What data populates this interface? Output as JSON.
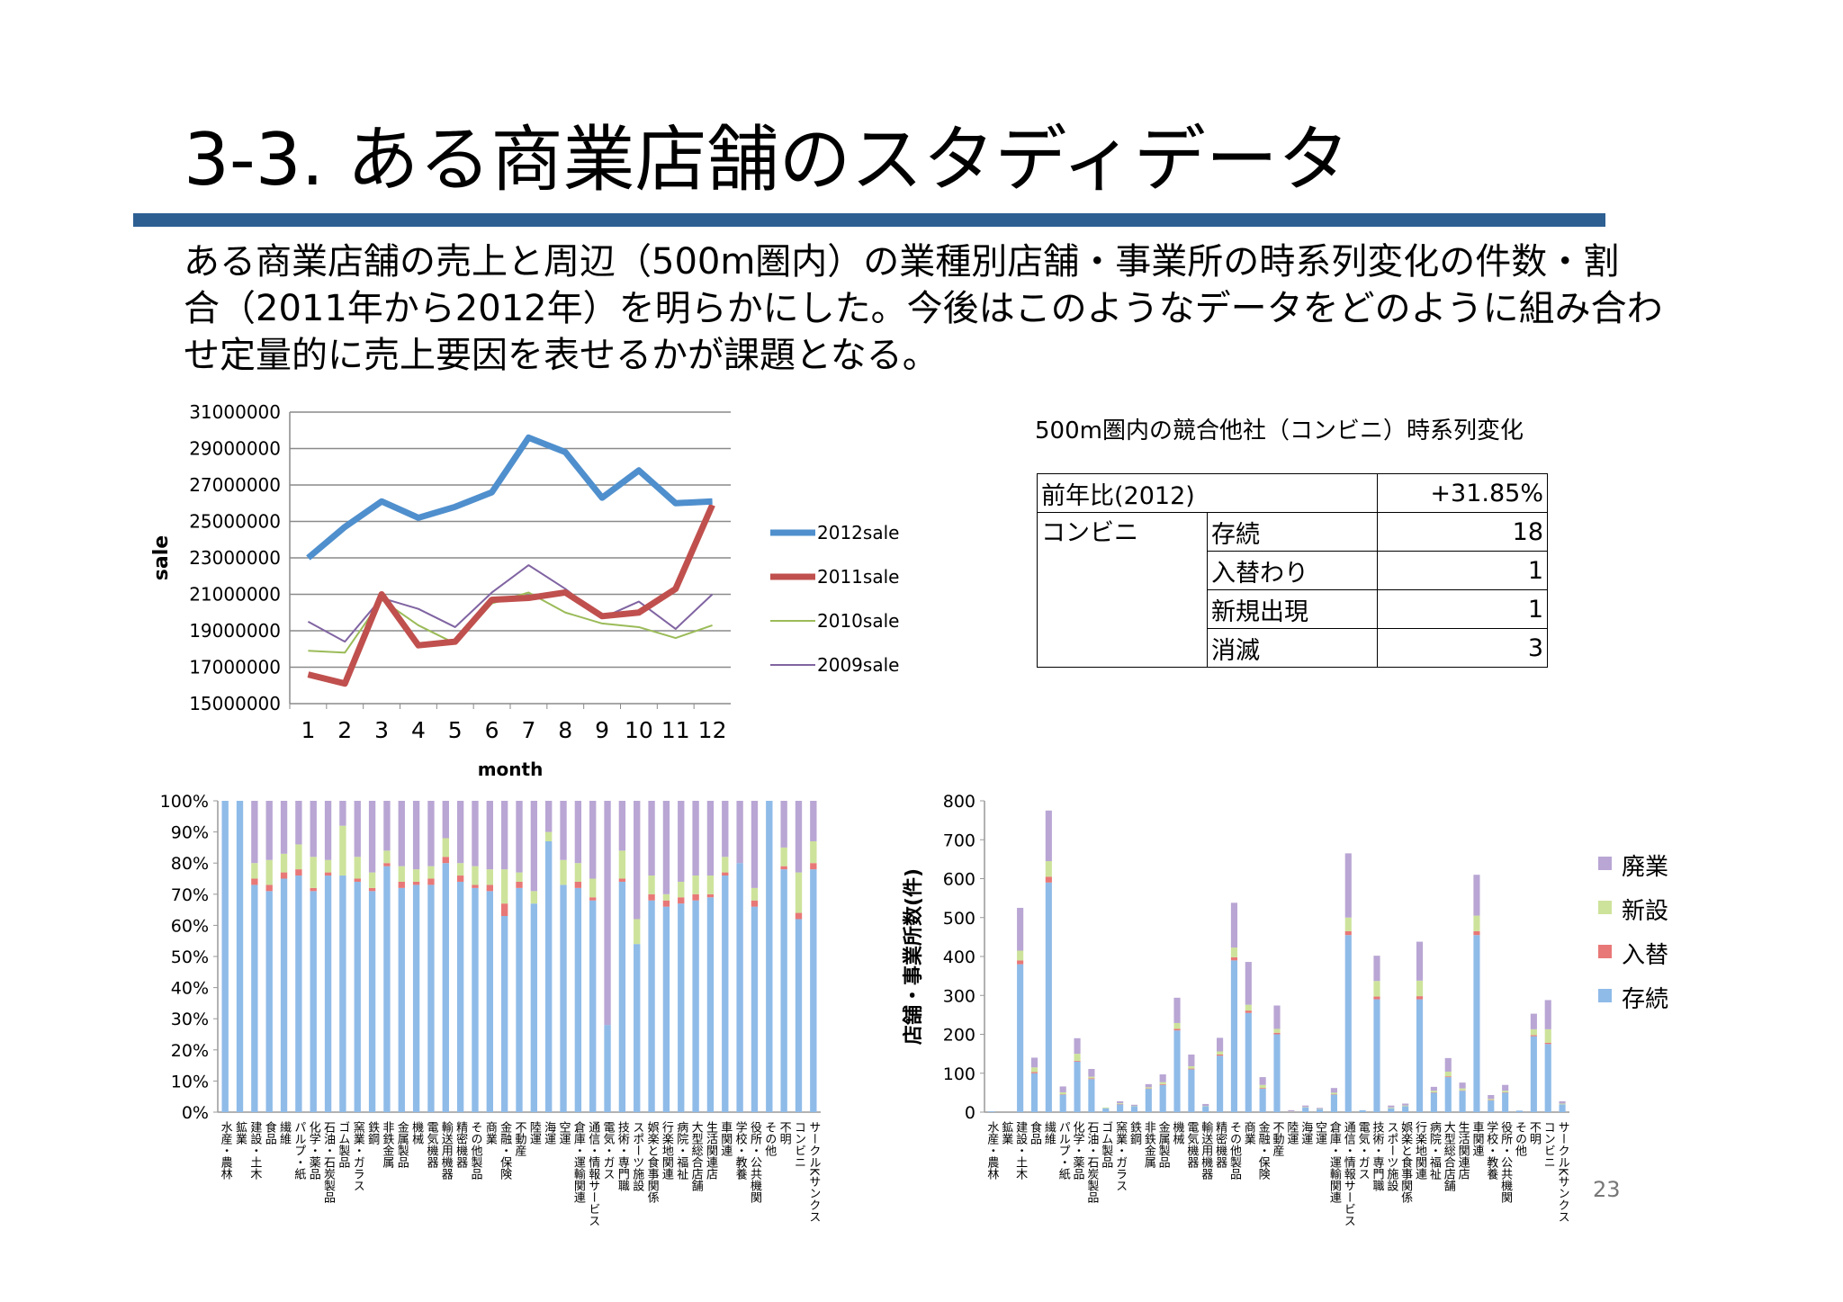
{
  "slide": {
    "title": "3-3. ある商業店舗のスタディデータ",
    "body_lines": [
      "ある商業店舗の売上と周辺（500m圏内）の業種別店舗・事業所の時系列変化の件数・割",
      "合（2011年から2012年）を明らかにした。今後はこのようなデータをどのように組み合わ",
      "せ定量的に売上要因を表せるかが課題となる。"
    ],
    "page_number": "23"
  },
  "table": {
    "caption": "500m圏内の競合他社（コンビニ）時系列変化",
    "header_label": "前年比(2012)",
    "header_value": "+31.85%",
    "group_label": "コンビニ",
    "rows": [
      {
        "label": "存続",
        "value": "18"
      },
      {
        "label": "入替わり",
        "value": "1"
      },
      {
        "label": "新規出現",
        "value": "1"
      },
      {
        "label": "消滅",
        "value": "3"
      }
    ]
  },
  "chart_data": [
    {
      "type": "line",
      "title": "",
      "xlabel": "month",
      "ylabel": "sale",
      "x": [
        1,
        2,
        3,
        4,
        5,
        6,
        7,
        8,
        9,
        10,
        11,
        12
      ],
      "ylim": [
        15000000,
        31000000
      ],
      "yticks": [
        15000000,
        17000000,
        19000000,
        21000000,
        23000000,
        25000000,
        27000000,
        29000000,
        31000000
      ],
      "grid": true,
      "legend": "right",
      "series": [
        {
          "name": "2012sale",
          "color": "#4f8fcd",
          "width": "thick",
          "values": [
            23000000,
            24700000,
            26100000,
            25200000,
            25800000,
            26600000,
            29600000,
            28800000,
            26300000,
            27800000,
            26000000,
            26100000
          ]
        },
        {
          "name": "2011sale",
          "color": "#c0504d",
          "width": "thick",
          "values": [
            16600000,
            16100000,
            21000000,
            18200000,
            18400000,
            20700000,
            20800000,
            21100000,
            19800000,
            20000000,
            21300000,
            25900000
          ]
        },
        {
          "name": "2010sale",
          "color": "#9bbb59",
          "width": "thin",
          "values": [
            17900000,
            17800000,
            20700000,
            19300000,
            18300000,
            20500000,
            21100000,
            20000000,
            19400000,
            19200000,
            18600000,
            19300000
          ]
        },
        {
          "name": "2009sale",
          "color": "#8064a2",
          "width": "thin",
          "values": [
            19500000,
            18400000,
            20800000,
            20200000,
            19200000,
            21100000,
            22600000,
            21300000,
            19700000,
            20600000,
            19100000,
            21000000
          ]
        }
      ]
    },
    {
      "type": "bar",
      "stacked": true,
      "percent": true,
      "title": "",
      "xlabel": "",
      "ylabel": "",
      "ylim": [
        0,
        100
      ],
      "yticks_label": [
        "0%",
        "10%",
        "20%",
        "30%",
        "40%",
        "50%",
        "60%",
        "70%",
        "80%",
        "90%",
        "100%"
      ],
      "categories": [
        "水産・農林",
        "鉱業",
        "建設・土木",
        "食品",
        "繊維",
        "パルプ・紙",
        "化学・薬品",
        "石油・石炭製品",
        "ゴム製品",
        "窯業・ガラス",
        "鉄鋼",
        "非鉄金属",
        "金属製品",
        "機械",
        "電気機器",
        "輸送用機器",
        "精密機器",
        "その他製品",
        "商業",
        "金融・保険",
        "不動産",
        "陸運",
        "海運",
        "空運",
        "倉庫・運輸関連",
        "通信・情報サービス",
        "電気・ガス",
        "技術・専門職",
        "スポーツ施設",
        "娯楽と食事関係",
        "行楽地関連",
        "病院・福祉",
        "大型総合店舗",
        "生活関連店",
        "車関連",
        "学校・教養",
        "役所・公共機関",
        "その他",
        "不明",
        "コンビニ",
        "サークルKサンクス"
      ],
      "series": [
        {
          "name": "存続",
          "color": "#8fbbe8",
          "values": [
            100,
            100,
            73,
            71,
            75,
            76,
            71,
            76,
            76,
            74,
            71,
            79,
            72,
            73,
            73,
            80,
            74,
            72,
            71,
            63,
            72,
            67,
            87,
            73,
            72,
            68,
            28,
            74,
            54,
            68,
            66,
            67,
            68,
            69,
            76,
            80,
            66,
            100,
            78,
            62,
            78
          ]
        },
        {
          "name": "入替",
          "color": "#e87878",
          "values": [
            0,
            0,
            2,
            2,
            2,
            2,
            1,
            1,
            0,
            1,
            1,
            1,
            2,
            1,
            2,
            2,
            2,
            1,
            2,
            4,
            2,
            0,
            0,
            0,
            2,
            1,
            0,
            1,
            0,
            2,
            2,
            2,
            2,
            1,
            1,
            0,
            2,
            0,
            1,
            2,
            2
          ]
        },
        {
          "name": "新設",
          "color": "#cde39b",
          "values": [
            0,
            0,
            5,
            8,
            6,
            8,
            10,
            4,
            16,
            7,
            5,
            4,
            5,
            4,
            4,
            6,
            4,
            6,
            5,
            11,
            3,
            4,
            3,
            8,
            6,
            6,
            0,
            9,
            8,
            6,
            2,
            5,
            6,
            6,
            5,
            0,
            4,
            0,
            6,
            13,
            7
          ]
        },
        {
          "name": "廃業",
          "color": "#b9a6d4",
          "values": [
            0,
            0,
            20,
            19,
            17,
            14,
            18,
            19,
            8,
            18,
            23,
            16,
            21,
            22,
            21,
            12,
            20,
            21,
            22,
            22,
            23,
            29,
            10,
            19,
            20,
            25,
            72,
            16,
            38,
            24,
            30,
            26,
            24,
            24,
            18,
            20,
            28,
            0,
            15,
            23,
            13
          ]
        }
      ]
    },
    {
      "type": "bar",
      "stacked": true,
      "title": "",
      "xlabel": "",
      "ylabel": "店舗・事業所数(件)",
      "ylim": [
        0,
        800
      ],
      "legend": "right",
      "categories": [
        "水産・農林",
        "鉱業",
        "建設・土木",
        "食品",
        "繊維",
        "パルプ・紙",
        "化学・薬品",
        "石油・石炭製品",
        "ゴム製品",
        "窯業・ガラス",
        "鉄鋼",
        "非鉄金属",
        "金属製品",
        "機械",
        "電気機器",
        "輸送用機器",
        "精密機器",
        "その他製品",
        "商業",
        "金融・保険",
        "不動産",
        "陸運",
        "海運",
        "空運",
        "倉庫・運輸関連",
        "通信・情報サービス",
        "電気・ガス",
        "技術・専門職",
        "スポーツ施設",
        "娯楽と食事関係",
        "行楽地関連",
        "病院・福祉",
        "大型総合店舗",
        "生活関連店",
        "車関連",
        "学校・教養",
        "役所・公共機関",
        "その他",
        "不明",
        "コンビニ",
        "サークルKサンクス"
      ],
      "series": [
        {
          "name": "存続",
          "color": "#8fbbe8",
          "values": [
            2,
            0,
            380,
            100,
            590,
            45,
            130,
            85,
            10,
            20,
            15,
            60,
            70,
            210,
            110,
            15,
            145,
            390,
            255,
            60,
            200,
            0,
            12,
            8,
            45,
            455,
            5,
            290,
            10,
            15,
            290,
            50,
            90,
            55,
            455,
            30,
            50,
            4,
            195,
            175,
            20
          ]
        },
        {
          "name": "入替",
          "color": "#e87878",
          "values": [
            0,
            0,
            10,
            3,
            15,
            1,
            2,
            2,
            0,
            1,
            0,
            1,
            2,
            4,
            2,
            0,
            3,
            8,
            6,
            2,
            4,
            0,
            0,
            0,
            1,
            10,
            0,
            7,
            0,
            0,
            8,
            1,
            2,
            1,
            10,
            1,
            1,
            0,
            3,
            3,
            0
          ]
        },
        {
          "name": "新設",
          "color": "#cde39b",
          "values": [
            0,
            0,
            25,
            12,
            40,
            5,
            18,
            4,
            2,
            2,
            1,
            3,
            5,
            15,
            6,
            1,
            8,
            25,
            15,
            8,
            10,
            1,
            1,
            1,
            4,
            35,
            0,
            40,
            2,
            2,
            40,
            4,
            12,
            5,
            40,
            3,
            4,
            0,
            15,
            35,
            2
          ]
        },
        {
          "name": "廃業",
          "color": "#b9a6d4",
          "values": [
            0,
            0,
            110,
            25,
            130,
            15,
            40,
            20,
            0,
            5,
            3,
            8,
            20,
            65,
            30,
            5,
            35,
            115,
            110,
            20,
            60,
            4,
            4,
            2,
            12,
            165,
            0,
            65,
            5,
            5,
            100,
            10,
            35,
            15,
            105,
            10,
            15,
            0,
            40,
            75,
            6
          ]
        }
      ]
    }
  ]
}
